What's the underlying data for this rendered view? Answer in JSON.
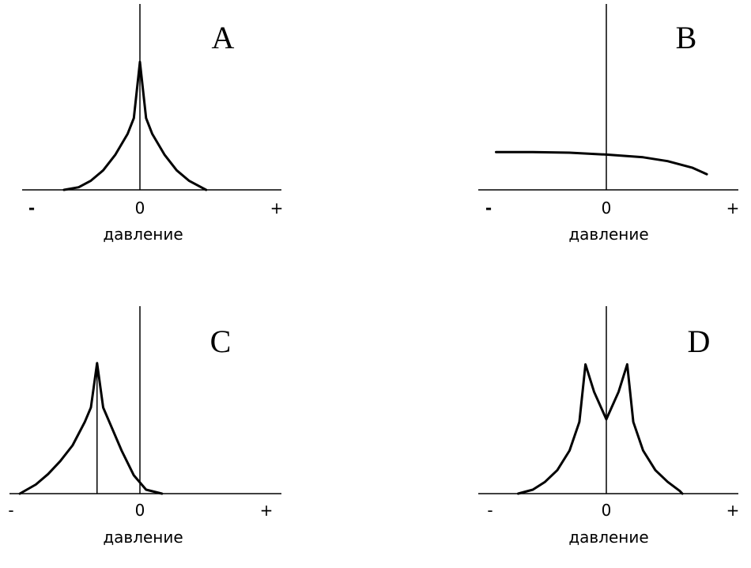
{
  "chart_data": [
    {
      "type": "line",
      "panel": "A",
      "xlabel": "давление",
      "ticks": {
        "left": "-",
        "center": "0",
        "right": "+"
      },
      "xlim": [
        -1,
        1
      ],
      "ylim": [
        0,
        1
      ],
      "x": [
        -0.62,
        -0.5,
        -0.4,
        -0.3,
        -0.2,
        -0.1,
        -0.05,
        0,
        0.05,
        0.1,
        0.2,
        0.3,
        0.4,
        0.5,
        0.54
      ],
      "y": [
        0.0,
        0.02,
        0.07,
        0.15,
        0.27,
        0.43,
        0.55,
        0.98,
        0.55,
        0.43,
        0.27,
        0.15,
        0.07,
        0.02,
        0.0
      ],
      "marker_x": 0
    },
    {
      "type": "line",
      "panel": "B",
      "xlabel": "давление",
      "ticks": {
        "left": "-",
        "center": "0",
        "right": "+"
      },
      "xlim": [
        -1,
        1
      ],
      "ylim": [
        0,
        1
      ],
      "x": [
        -0.9,
        -0.6,
        -0.3,
        0,
        0.3,
        0.5,
        0.7,
        0.82
      ],
      "y": [
        0.29,
        0.29,
        0.285,
        0.27,
        0.25,
        0.22,
        0.17,
        0.12
      ],
      "marker_x": 0
    },
    {
      "type": "line",
      "panel": "C",
      "xlabel": "давление",
      "ticks": {
        "left": "-",
        "center": "0",
        "right": "+"
      },
      "xlim": [
        -1,
        1
      ],
      "ylim": [
        0,
        1
      ],
      "x": [
        -0.98,
        -0.85,
        -0.75,
        -0.65,
        -0.55,
        -0.45,
        -0.4,
        -0.35,
        -0.3,
        -0.25,
        -0.15,
        -0.05,
        0.05,
        0.18
      ],
      "y": [
        0.0,
        0.07,
        0.15,
        0.25,
        0.37,
        0.55,
        0.66,
        1.0,
        0.66,
        0.55,
        0.33,
        0.14,
        0.03,
        0.0
      ],
      "marker_x": -0.35
    },
    {
      "type": "line",
      "panel": "D",
      "xlabel": "давление",
      "ticks": {
        "left": "-",
        "center": "0",
        "right": "+"
      },
      "xlim": [
        -1,
        1
      ],
      "ylim": [
        0,
        1
      ],
      "x": [
        -0.72,
        -0.6,
        -0.5,
        -0.4,
        -0.3,
        -0.22,
        -0.17,
        -0.1,
        0,
        0.1,
        0.17,
        0.22,
        0.3,
        0.4,
        0.5,
        0.6,
        0.62
      ],
      "y": [
        0.0,
        0.03,
        0.09,
        0.18,
        0.33,
        0.55,
        0.99,
        0.78,
        0.57,
        0.78,
        0.99,
        0.55,
        0.33,
        0.18,
        0.09,
        0.02,
        0.0
      ],
      "marker_x": 0
    }
  ]
}
